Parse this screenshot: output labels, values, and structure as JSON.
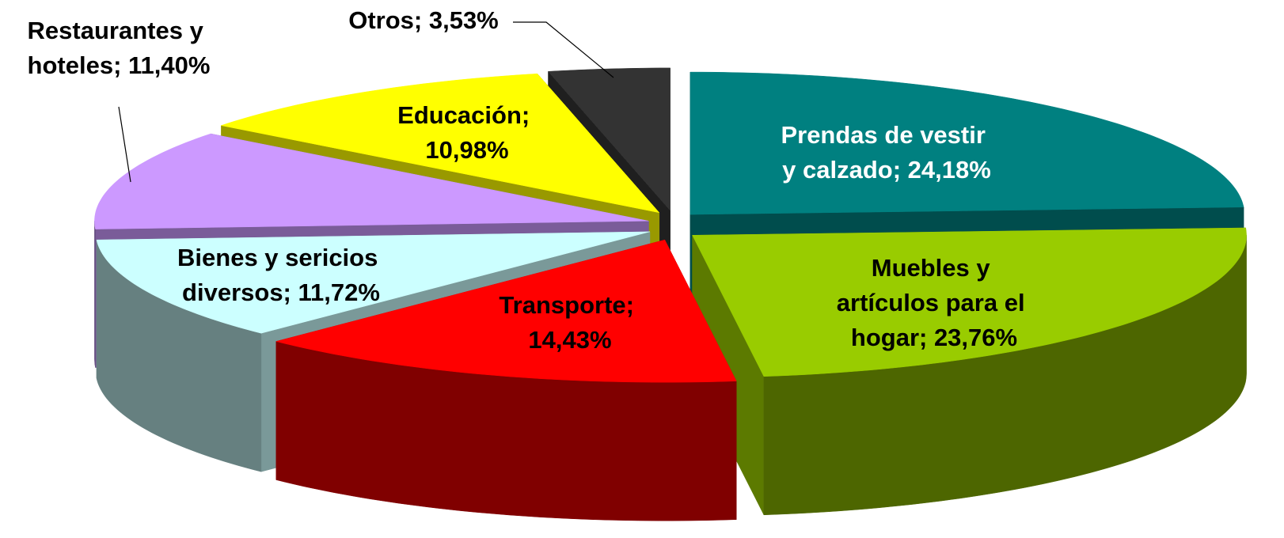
{
  "chart_data": {
    "type": "pie3d",
    "values": [
      24.18,
      23.76,
      14.43,
      11.72,
      11.4,
      10.98,
      3.53
    ],
    "value_labels": [
      "Prendas de vestir y calzado; 24,18%",
      "Muebles y artículos para el hogar; 23,76%",
      "Transporte; 14,43%",
      "Bienes y sericios diversos; 11,72%",
      "Restaurantes y hoteles; 11,40%",
      "Educación; 10,98%",
      "Otros; 3,53%"
    ],
    "colors": [
      "#008080",
      "#99cc00",
      "#ff0000",
      "#ccffff",
      "#cc99ff",
      "#ffff00",
      "#333333"
    ],
    "label_colors": [
      "#ffffff",
      "#000000",
      "#000000",
      "#000000",
      "#000000",
      "#000000",
      "#000000"
    ]
  }
}
